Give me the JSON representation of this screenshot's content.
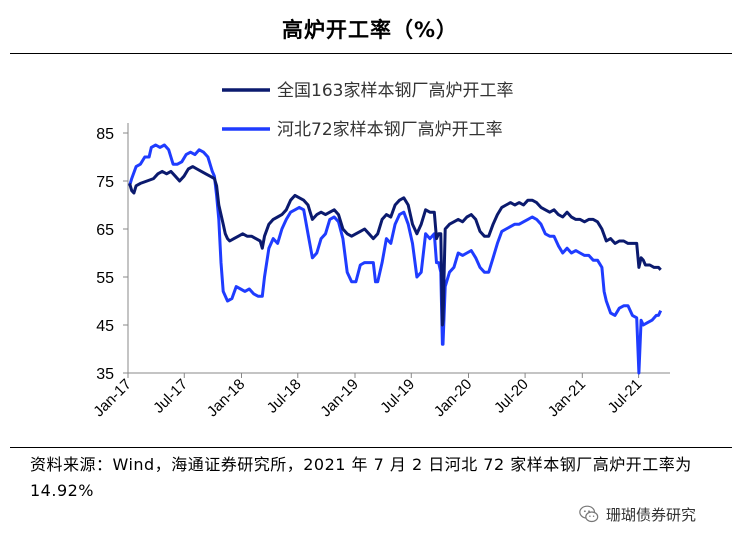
{
  "header": {
    "title": "高炉开工率（%）"
  },
  "source_note": "资料来源：Wind，海通证券研究所，2021 年 7 月 2 日河北 72 家样本钢厂高炉开工率为 14.92%",
  "watermark": {
    "icon": "wechat-icon",
    "text": "珊瑚债券研究"
  },
  "colors": {
    "national": "#0b1a6e",
    "hebei": "#1f3cff",
    "axis": "#888888"
  },
  "chart_data": {
    "type": "line",
    "title": "高炉开工率（%）",
    "xlabel": "",
    "ylabel": "",
    "ylim": [
      35,
      85
    ],
    "yticks": [
      35,
      45,
      55,
      65,
      75,
      85
    ],
    "xlim": [
      "2017-01-01",
      "2021-10-10"
    ],
    "xticks": [
      {
        "label": "Jan-17",
        "date": "2017-01-01"
      },
      {
        "label": "Jul-17",
        "date": "2017-07-01"
      },
      {
        "label": "Jan-18",
        "date": "2018-01-01"
      },
      {
        "label": "Jul-18",
        "date": "2018-07-01"
      },
      {
        "label": "Jan-19",
        "date": "2019-01-01"
      },
      {
        "label": "Jul-19",
        "date": "2019-07-01"
      },
      {
        "label": "Jan-20",
        "date": "2020-01-01"
      },
      {
        "label": "Jul-20",
        "date": "2020-07-01"
      },
      {
        "label": "Jan-21",
        "date": "2021-01-01"
      },
      {
        "label": "Jul-21",
        "date": "2021-07-01"
      }
    ],
    "legend_position": "top-right",
    "grid": false,
    "series": [
      {
        "name": "全国163家样本钢厂高炉开工率",
        "points": [
          [
            "2017-01-06",
            74.5
          ],
          [
            "2017-01-13",
            73
          ],
          [
            "2017-01-20",
            72.5
          ],
          [
            "2017-01-27",
            74
          ],
          [
            "2017-02-10",
            74.5
          ],
          [
            "2017-03-03",
            75
          ],
          [
            "2017-03-24",
            75.5
          ],
          [
            "2017-04-07",
            76.5
          ],
          [
            "2017-04-21",
            77
          ],
          [
            "2017-05-05",
            76.5
          ],
          [
            "2017-05-19",
            77
          ],
          [
            "2017-06-02",
            76
          ],
          [
            "2017-06-16",
            75
          ],
          [
            "2017-06-30",
            76
          ],
          [
            "2017-07-14",
            77.5
          ],
          [
            "2017-07-28",
            78
          ],
          [
            "2017-08-11",
            77.5
          ],
          [
            "2017-08-25",
            77
          ],
          [
            "2017-09-08",
            76.5
          ],
          [
            "2017-09-22",
            76
          ],
          [
            "2017-10-06",
            75.5
          ],
          [
            "2017-10-13",
            74
          ],
          [
            "2017-10-20",
            70
          ],
          [
            "2017-10-27",
            68
          ],
          [
            "2017-11-03",
            66
          ],
          [
            "2017-11-10",
            64
          ],
          [
            "2017-11-17",
            63
          ],
          [
            "2017-11-24",
            62.5
          ],
          [
            "2017-12-08",
            63
          ],
          [
            "2017-12-22",
            63.5
          ],
          [
            "2018-01-05",
            64
          ],
          [
            "2018-01-19",
            63.5
          ],
          [
            "2018-02-02",
            63.5
          ],
          [
            "2018-02-16",
            63
          ],
          [
            "2018-03-02",
            62.5
          ],
          [
            "2018-03-09",
            61
          ],
          [
            "2018-03-16",
            63.5
          ],
          [
            "2018-03-30",
            66
          ],
          [
            "2018-04-13",
            67
          ],
          [
            "2018-04-27",
            67.5
          ],
          [
            "2018-05-11",
            68
          ],
          [
            "2018-05-25",
            69
          ],
          [
            "2018-06-08",
            71
          ],
          [
            "2018-06-22",
            72
          ],
          [
            "2018-07-06",
            71.5
          ],
          [
            "2018-07-20",
            71
          ],
          [
            "2018-08-03",
            70
          ],
          [
            "2018-08-17",
            67
          ],
          [
            "2018-08-31",
            68
          ],
          [
            "2018-09-14",
            68.5
          ],
          [
            "2018-09-28",
            68
          ],
          [
            "2018-10-12",
            68.5
          ],
          [
            "2018-10-26",
            69
          ],
          [
            "2018-11-09",
            68
          ],
          [
            "2018-11-23",
            65
          ],
          [
            "2018-12-07",
            64
          ],
          [
            "2018-12-21",
            63.5
          ],
          [
            "2019-01-04",
            64
          ],
          [
            "2019-01-18",
            64.5
          ],
          [
            "2019-02-01",
            65
          ],
          [
            "2019-02-15",
            64
          ],
          [
            "2019-03-01",
            63
          ],
          [
            "2019-03-15",
            64
          ],
          [
            "2019-03-29",
            67
          ],
          [
            "2019-04-12",
            68
          ],
          [
            "2019-04-26",
            67.5
          ],
          [
            "2019-05-10",
            70
          ],
          [
            "2019-05-24",
            71
          ],
          [
            "2019-06-07",
            71.5
          ],
          [
            "2019-06-21",
            70
          ],
          [
            "2019-07-05",
            66
          ],
          [
            "2019-07-19",
            64
          ],
          [
            "2019-08-02",
            66
          ],
          [
            "2019-08-16",
            69
          ],
          [
            "2019-08-30",
            68.5
          ],
          [
            "2019-09-13",
            68.5
          ],
          [
            "2019-09-20",
            63
          ],
          [
            "2019-09-27",
            64
          ],
          [
            "2019-10-04",
            64
          ],
          [
            "2019-10-09",
            45
          ],
          [
            "2019-10-11",
            46
          ],
          [
            "2019-10-18",
            65
          ],
          [
            "2019-11-01",
            66
          ],
          [
            "2019-11-15",
            66.5
          ],
          [
            "2019-11-29",
            67
          ],
          [
            "2019-12-13",
            66.5
          ],
          [
            "2019-12-27",
            67.5
          ],
          [
            "2020-01-10",
            68
          ],
          [
            "2020-01-24",
            67
          ],
          [
            "2020-02-07",
            64.5
          ],
          [
            "2020-02-21",
            63.5
          ],
          [
            "2020-03-06",
            63.5
          ],
          [
            "2020-03-20",
            66
          ],
          [
            "2020-04-03",
            68
          ],
          [
            "2020-04-17",
            69.5
          ],
          [
            "2020-05-01",
            70
          ],
          [
            "2020-05-15",
            70.5
          ],
          [
            "2020-05-29",
            70
          ],
          [
            "2020-06-12",
            70.5
          ],
          [
            "2020-06-26",
            70
          ],
          [
            "2020-07-10",
            71
          ],
          [
            "2020-07-24",
            71
          ],
          [
            "2020-08-07",
            70.5
          ],
          [
            "2020-08-21",
            69.5
          ],
          [
            "2020-09-04",
            69
          ],
          [
            "2020-09-18",
            68.5
          ],
          [
            "2020-10-02",
            69
          ],
          [
            "2020-10-16",
            68
          ],
          [
            "2020-10-30",
            67.5
          ],
          [
            "2020-11-13",
            68.5
          ],
          [
            "2020-11-27",
            67.5
          ],
          [
            "2020-12-11",
            67
          ],
          [
            "2020-12-25",
            67
          ],
          [
            "2021-01-08",
            66.5
          ],
          [
            "2021-01-22",
            67
          ],
          [
            "2021-02-05",
            67
          ],
          [
            "2021-02-19",
            66.5
          ],
          [
            "2021-03-05",
            65
          ],
          [
            "2021-03-19",
            62.5
          ],
          [
            "2021-04-02",
            63
          ],
          [
            "2021-04-16",
            62
          ],
          [
            "2021-04-30",
            62.5
          ],
          [
            "2021-05-14",
            62.5
          ],
          [
            "2021-05-28",
            62
          ],
          [
            "2021-06-11",
            62
          ],
          [
            "2021-06-25",
            62
          ],
          [
            "2021-07-02",
            57
          ],
          [
            "2021-07-09",
            59
          ],
          [
            "2021-07-16",
            58.5
          ],
          [
            "2021-07-23",
            57.5
          ],
          [
            "2021-08-06",
            57.5
          ],
          [
            "2021-08-20",
            57
          ],
          [
            "2021-09-03",
            57
          ],
          [
            "2021-09-10",
            56.5
          ]
        ]
      },
      {
        "name": "河北72家样本钢厂高炉开工率",
        "points": [
          [
            "2017-01-06",
            74
          ],
          [
            "2017-01-13",
            75.5
          ],
          [
            "2017-01-27",
            78
          ],
          [
            "2017-02-10",
            78.5
          ],
          [
            "2017-02-24",
            80
          ],
          [
            "2017-03-10",
            80
          ],
          [
            "2017-03-17",
            82
          ],
          [
            "2017-03-31",
            82.5
          ],
          [
            "2017-04-14",
            82
          ],
          [
            "2017-04-28",
            82.5
          ],
          [
            "2017-05-12",
            81.5
          ],
          [
            "2017-05-26",
            78.5
          ],
          [
            "2017-06-09",
            78.5
          ],
          [
            "2017-06-23",
            79
          ],
          [
            "2017-07-07",
            80.5
          ],
          [
            "2017-07-21",
            81
          ],
          [
            "2017-08-04",
            80.5
          ],
          [
            "2017-08-18",
            81.5
          ],
          [
            "2017-09-01",
            81
          ],
          [
            "2017-09-15",
            80
          ],
          [
            "2017-09-29",
            77
          ],
          [
            "2017-10-06",
            76
          ],
          [
            "2017-10-13",
            72
          ],
          [
            "2017-10-20",
            67
          ],
          [
            "2017-10-27",
            58
          ],
          [
            "2017-11-03",
            52
          ],
          [
            "2017-11-17",
            50
          ],
          [
            "2017-12-01",
            50.5
          ],
          [
            "2017-12-15",
            53
          ],
          [
            "2017-12-29",
            52.5
          ],
          [
            "2018-01-12",
            52
          ],
          [
            "2018-01-26",
            52.5
          ],
          [
            "2018-02-09",
            51.5
          ],
          [
            "2018-02-23",
            51
          ],
          [
            "2018-03-09",
            51
          ],
          [
            "2018-03-16",
            55
          ],
          [
            "2018-03-30",
            61
          ],
          [
            "2018-04-13",
            63
          ],
          [
            "2018-04-27",
            62
          ],
          [
            "2018-05-11",
            65
          ],
          [
            "2018-05-25",
            67
          ],
          [
            "2018-06-08",
            68.5
          ],
          [
            "2018-06-22",
            69
          ],
          [
            "2018-07-06",
            69.5
          ],
          [
            "2018-07-20",
            69
          ],
          [
            "2018-08-03",
            64
          ],
          [
            "2018-08-17",
            59
          ],
          [
            "2018-08-31",
            60
          ],
          [
            "2018-09-14",
            63
          ],
          [
            "2018-09-28",
            64
          ],
          [
            "2018-10-12",
            67
          ],
          [
            "2018-10-26",
            67.5
          ],
          [
            "2018-11-09",
            66.5
          ],
          [
            "2018-11-23",
            63
          ],
          [
            "2018-12-07",
            56
          ],
          [
            "2018-12-21",
            54
          ],
          [
            "2019-01-04",
            54
          ],
          [
            "2019-01-18",
            57.5
          ],
          [
            "2019-02-01",
            58
          ],
          [
            "2019-02-15",
            58
          ],
          [
            "2019-03-01",
            58
          ],
          [
            "2019-03-08",
            54
          ],
          [
            "2019-03-15",
            54
          ],
          [
            "2019-03-29",
            58
          ],
          [
            "2019-04-12",
            63
          ],
          [
            "2019-04-26",
            62
          ],
          [
            "2019-05-10",
            66
          ],
          [
            "2019-05-24",
            68
          ],
          [
            "2019-06-07",
            68.5
          ],
          [
            "2019-06-21",
            66
          ],
          [
            "2019-07-05",
            62
          ],
          [
            "2019-07-19",
            55
          ],
          [
            "2019-08-02",
            56
          ],
          [
            "2019-08-16",
            64
          ],
          [
            "2019-08-30",
            63
          ],
          [
            "2019-09-13",
            64
          ],
          [
            "2019-09-20",
            58
          ],
          [
            "2019-09-27",
            58
          ],
          [
            "2019-10-04",
            56
          ],
          [
            "2019-10-09",
            41
          ],
          [
            "2019-10-11",
            41
          ],
          [
            "2019-10-18",
            53
          ],
          [
            "2019-11-01",
            56
          ],
          [
            "2019-11-15",
            57
          ],
          [
            "2019-11-29",
            60
          ],
          [
            "2019-12-13",
            59.5
          ],
          [
            "2019-12-27",
            60
          ],
          [
            "2020-01-10",
            60.5
          ],
          [
            "2020-01-24",
            59
          ],
          [
            "2020-02-07",
            57
          ],
          [
            "2020-02-21",
            56
          ],
          [
            "2020-03-06",
            56
          ],
          [
            "2020-03-20",
            59
          ],
          [
            "2020-04-03",
            62
          ],
          [
            "2020-04-17",
            64.5
          ],
          [
            "2020-05-01",
            65
          ],
          [
            "2020-05-15",
            65.5
          ],
          [
            "2020-05-29",
            66
          ],
          [
            "2020-06-12",
            66
          ],
          [
            "2020-06-26",
            66.5
          ],
          [
            "2020-07-10",
            67
          ],
          [
            "2020-07-24",
            67.5
          ],
          [
            "2020-08-07",
            67
          ],
          [
            "2020-08-21",
            66
          ],
          [
            "2020-09-04",
            64
          ],
          [
            "2020-09-18",
            63.5
          ],
          [
            "2020-10-02",
            63.5
          ],
          [
            "2020-10-16",
            61.5
          ],
          [
            "2020-10-30",
            60
          ],
          [
            "2020-11-13",
            61
          ],
          [
            "2020-11-27",
            60
          ],
          [
            "2020-12-11",
            60.5
          ],
          [
            "2020-12-25",
            60
          ],
          [
            "2021-01-08",
            59.5
          ],
          [
            "2021-01-22",
            59.5
          ],
          [
            "2021-02-05",
            58.5
          ],
          [
            "2021-02-19",
            58.5
          ],
          [
            "2021-03-05",
            57
          ],
          [
            "2021-03-12",
            52
          ],
          [
            "2021-03-19",
            50
          ],
          [
            "2021-04-02",
            47.5
          ],
          [
            "2021-04-16",
            47
          ],
          [
            "2021-04-30",
            48.5
          ],
          [
            "2021-05-14",
            49
          ],
          [
            "2021-05-28",
            49
          ],
          [
            "2021-06-11",
            47
          ],
          [
            "2021-06-25",
            46.5
          ],
          [
            "2021-07-02",
            35
          ],
          [
            "2021-07-09",
            46
          ],
          [
            "2021-07-16",
            45
          ],
          [
            "2021-07-30",
            45.5
          ],
          [
            "2021-08-13",
            46
          ],
          [
            "2021-08-27",
            47
          ],
          [
            "2021-09-03",
            47
          ],
          [
            "2021-09-10",
            48
          ]
        ]
      }
    ]
  }
}
